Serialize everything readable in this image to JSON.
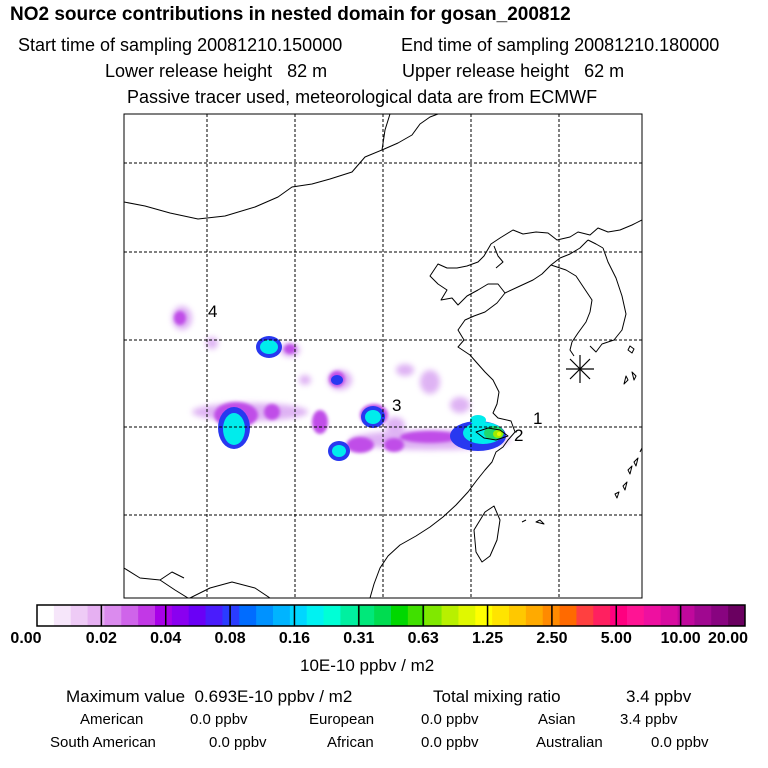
{
  "header": {
    "title": "NO2 source contributions in nested domain for gosan_200812",
    "start_label": "Start time of sampling 20081210.150000",
    "end_label": "End time of sampling 20081210.180000",
    "lower_label": "Lower release height   82 m",
    "upper_label": "Upper release height   62 m",
    "note": "Passive tracer used, meteorological data are from ECMWF"
  },
  "map": {
    "source_labels": [
      "1",
      "2",
      "3",
      "4"
    ],
    "receptor_symbol": "✳"
  },
  "colorbar": {
    "ticks": [
      "0.00",
      "0.02",
      "0.04",
      "0.08",
      "0.16",
      "0.31",
      "0.63",
      "1.25",
      "2.50",
      "5.00",
      "10.00",
      "20.00"
    ],
    "unit": "10E-10 ppbv / m2",
    "colors": [
      "#ffffff",
      "#f6e6fa",
      "#eecbf6",
      "#e6b0f2",
      "#db8bee",
      "#cf64ea",
      "#c238e6",
      "#a800e8",
      "#8a00f0",
      "#6a00f6",
      "#4a1cfc",
      "#2a3cff",
      "#006cff",
      "#0092ff",
      "#00b4ff",
      "#00d6ff",
      "#00f2f2",
      "#00ffd6",
      "#00f0a0",
      "#00e87a",
      "#00dc50",
      "#00d800",
      "#40e000",
      "#80e800",
      "#b8f000",
      "#e0f800",
      "#ffff00",
      "#ffe400",
      "#ffc800",
      "#ffaa00",
      "#ff8a00",
      "#ff6a00",
      "#ff4040",
      "#ff2060",
      "#ff0080",
      "#ff1494",
      "#ee10a0",
      "#d80ca0",
      "#c0089c",
      "#a00890",
      "#880480",
      "#6a0060"
    ]
  },
  "footer": {
    "max_text": "Maximum value  0.693E-10 ppbv / m2",
    "total_label": "Total mixing ratio",
    "total_value": "3.4 ppbv",
    "regions": [
      {
        "name": "American",
        "value": "0.0 ppbv"
      },
      {
        "name": "European",
        "value": "0.0 ppbv"
      },
      {
        "name": "Asian",
        "value": "3.4 ppbv"
      },
      {
        "name": "South American",
        "value": "0.0 ppbv"
      },
      {
        "name": "African",
        "value": "0.0 ppbv"
      },
      {
        "name": "Australian",
        "value": "0.0 ppbv"
      }
    ]
  }
}
